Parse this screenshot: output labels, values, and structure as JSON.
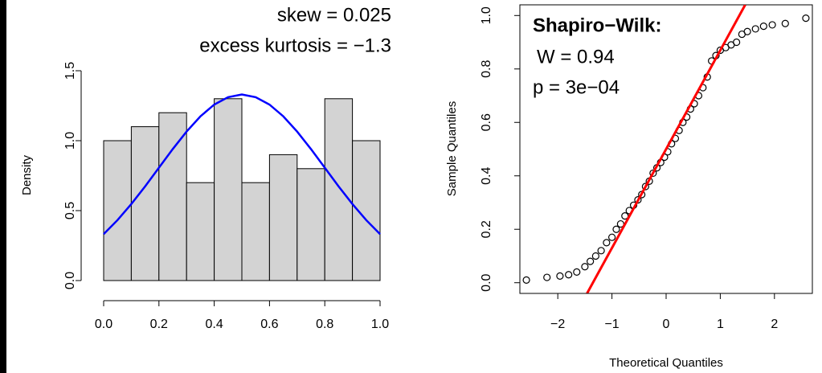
{
  "chart_data": [
    {
      "type": "histogram",
      "ylabel": "Density",
      "bins": [
        0,
        0.1,
        0.2,
        0.3,
        0.4,
        0.5,
        0.6,
        0.7,
        0.8,
        0.9,
        1.0
      ],
      "values": [
        1.0,
        1.1,
        1.2,
        0.7,
        1.3,
        0.7,
        0.9,
        0.8,
        1.3,
        1.0
      ],
      "color": "#d3d3d3",
      "curve": {
        "x": [
          0,
          0.05,
          0.1,
          0.15,
          0.2,
          0.25,
          0.3,
          0.35,
          0.4,
          0.45,
          0.5,
          0.55,
          0.6,
          0.65,
          0.7,
          0.75,
          0.8,
          0.85,
          0.9,
          0.95,
          1.0
        ],
        "values": [
          0.332,
          0.432,
          0.547,
          0.673,
          0.807,
          0.94,
          1.065,
          1.174,
          1.258,
          1.311,
          1.33,
          1.311,
          1.258,
          1.174,
          1.065,
          0.94,
          0.807,
          0.673,
          0.547,
          0.432,
          0.332
        ],
        "color": "#0000ff"
      },
      "annotations": [
        "skew = 0.025",
        "excess kurtosis = −1.3"
      ],
      "xlim": [
        0,
        1
      ],
      "ylim": [
        0,
        1.5
      ],
      "xticks": [
        {
          "value": 0,
          "label": "0.0"
        },
        {
          "value": 0.2,
          "label": "0.2"
        },
        {
          "value": 0.4,
          "label": "0.4"
        },
        {
          "value": 0.6,
          "label": "0.6"
        },
        {
          "value": 0.8,
          "label": "0.8"
        },
        {
          "value": 1,
          "label": "1.0"
        }
      ],
      "yticks": [
        {
          "value": 0,
          "label": "0.0"
        },
        {
          "value": 0.5,
          "label": "0.5"
        },
        {
          "value": 1,
          "label": "1.0"
        },
        {
          "value": 1.5,
          "label": "1.5"
        }
      ]
    },
    {
      "type": "scatter",
      "xlabel": "Theoretical Quantiles",
      "ylabel": "Sample Quantiles",
      "x": [
        -2.58,
        -2.2,
        -1.96,
        -1.8,
        -1.65,
        -1.5,
        -1.4,
        -1.3,
        -1.2,
        -1.1,
        -1.0,
        -0.92,
        -0.84,
        -0.76,
        -0.68,
        -0.6,
        -0.52,
        -0.45,
        -0.38,
        -0.31,
        -0.24,
        -0.17,
        -0.1,
        -0.03,
        0.03,
        0.1,
        0.17,
        0.24,
        0.31,
        0.38,
        0.45,
        0.52,
        0.6,
        0.68,
        0.76,
        0.84,
        0.92,
        1.0,
        1.1,
        1.2,
        1.3,
        1.4,
        1.5,
        1.65,
        1.8,
        1.96,
        2.2,
        2.58
      ],
      "values": [
        0.01,
        0.02,
        0.025,
        0.03,
        0.04,
        0.06,
        0.08,
        0.1,
        0.12,
        0.15,
        0.17,
        0.2,
        0.22,
        0.25,
        0.27,
        0.29,
        0.31,
        0.33,
        0.36,
        0.38,
        0.41,
        0.43,
        0.45,
        0.47,
        0.49,
        0.52,
        0.54,
        0.57,
        0.6,
        0.62,
        0.65,
        0.67,
        0.7,
        0.73,
        0.77,
        0.83,
        0.85,
        0.87,
        0.88,
        0.89,
        0.9,
        0.93,
        0.94,
        0.95,
        0.96,
        0.965,
        0.97,
        0.99
      ],
      "color": "#000000",
      "line": {
        "x": [
          -1.46,
          1.46
        ],
        "values": [
          -0.04,
          1.04
        ],
        "color": "#ff0000"
      },
      "annotations": [
        "Shapiro−Wilk:",
        "W = 0.94",
        "p = 3e−04"
      ],
      "xlim": [
        -2.7,
        2.7
      ],
      "ylim": [
        -0.04,
        1.04
      ],
      "xticks": [
        {
          "value": -2,
          "label": "−2"
        },
        {
          "value": -1,
          "label": "−1"
        },
        0,
        1,
        2
      ],
      "yticks": [
        {
          "value": 0,
          "label": "0.0"
        },
        {
          "value": 0.2,
          "label": "0.2"
        },
        {
          "value": 0.4,
          "label": "0.4"
        },
        {
          "value": 0.6,
          "label": "0.6"
        },
        {
          "value": 0.8,
          "label": "0.8"
        },
        {
          "value": 1,
          "label": "1.0"
        }
      ]
    }
  ]
}
